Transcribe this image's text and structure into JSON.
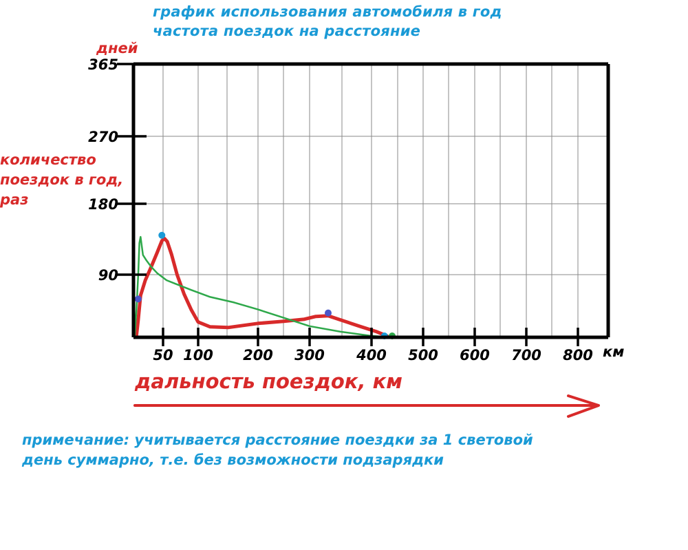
{
  "chart_data": {
    "type": "line",
    "title_lines": [
      "график использования автомобиля в год",
      "частота поездок на расстояние"
    ],
    "xlabel": "дальность поездок, км",
    "ylabel": "количество поездок в год, раз",
    "ylabel_secondary": "дней",
    "x_unit_label": "км",
    "x_ticks": [
      {
        "value": 50,
        "label": "50"
      },
      {
        "value": 100,
        "label": "100"
      },
      {
        "value": 200,
        "label": "200"
      },
      {
        "value": 300,
        "label": "300"
      },
      {
        "value": 400,
        "label": "400"
      },
      {
        "value": 500,
        "label": "500"
      },
      {
        "value": 600,
        "label": "600"
      },
      {
        "value": 700,
        "label": "700"
      },
      {
        "value": 800,
        "label": "800"
      }
    ],
    "y_ticks": [
      {
        "value": 90,
        "label": "90"
      },
      {
        "value": 180,
        "label": "180"
      },
      {
        "value": 270,
        "label": "270"
      },
      {
        "value": 365,
        "label": "365"
      }
    ],
    "xlim": [
      0,
      860
    ],
    "ylim": [
      0,
      365
    ],
    "grid": true,
    "series": [
      {
        "color": "#d82a2a",
        "x": [
          5,
          8,
          12,
          20,
          30,
          40,
          48,
          52,
          56,
          62,
          70,
          80,
          90,
          100,
          120,
          150,
          200,
          250,
          290,
          310,
          330,
          350,
          380,
          410,
          430
        ],
        "y": [
          2,
          25,
          60,
          82,
          100,
          118,
          133,
          136,
          132,
          116,
          90,
          62,
          40,
          22,
          15,
          14,
          20,
          23,
          26,
          30,
          31,
          25,
          16,
          8,
          2
        ]
      },
      {
        "color": "#2ea84a",
        "x": [
          2,
          5,
          8,
          10,
          12,
          16,
          22,
          30,
          40,
          55,
          70,
          90,
          120,
          160,
          200,
          250,
          300,
          350,
          400,
          440
        ],
        "y": [
          0,
          40,
          90,
          130,
          138,
          115,
          108,
          100,
          92,
          82,
          76,
          68,
          58,
          50,
          40,
          28,
          16,
          8,
          2,
          0
        ]
      }
    ],
    "markers": [
      {
        "color": "#4a55c8",
        "x": 8,
        "y": 55
      },
      {
        "color": "#1a9ad6",
        "x": 48,
        "y": 140
      },
      {
        "color": "#4a55c8",
        "x": 330,
        "y": 35
      },
      {
        "color": "#1a9ad6",
        "x": 425,
        "y": 2
      },
      {
        "color": "#2ea84a",
        "x": 440,
        "y": 2
      }
    ]
  },
  "note": "примечание: учитывается расстояние поездки за 1 световой день суммарно, т.е. без возможности подзарядки"
}
